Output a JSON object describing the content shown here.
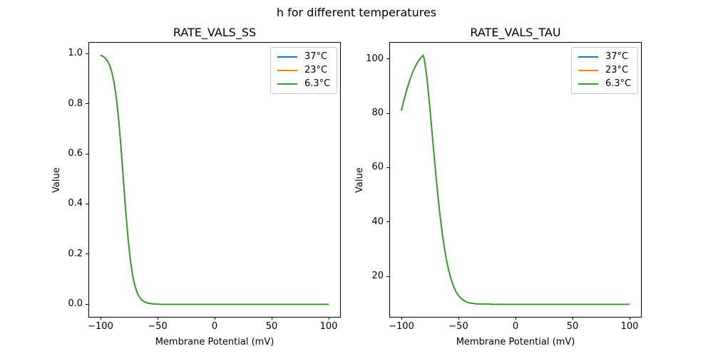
{
  "figure": {
    "suptitle": "h for different temperatures",
    "background": "#ffffff"
  },
  "chart_data": [
    {
      "type": "line",
      "title": "RATE_VALS_SS",
      "xlabel": "Membrane Potential (mV)",
      "ylabel": "Value",
      "xlim": [
        -110,
        110
      ],
      "ylim": [
        -0.05,
        1.043
      ],
      "xticks": [
        -100,
        -50,
        0,
        50,
        100
      ],
      "xtick_labels": [
        "−100",
        "−50",
        "0",
        "50",
        "100"
      ],
      "yticks": [
        0,
        0.2,
        0.4,
        0.6,
        0.8,
        1
      ],
      "ytick_labels": [
        "0.0",
        "0.2",
        "0.4",
        "0.6",
        "0.8",
        "1.0"
      ],
      "grid": false,
      "legend_position": "upper right",
      "note": "all three temperature curves overlap exactly; only the last-drawn (6.3°C, green) is visible",
      "x": [
        -100,
        -98,
        -96,
        -94,
        -92,
        -90,
        -88,
        -86,
        -84,
        -82,
        -81,
        -80,
        -78,
        -76,
        -74,
        -72,
        -70,
        -68,
        -66,
        -64,
        -62,
        -60,
        -58,
        -56,
        -54,
        -52,
        -50,
        -48,
        -46,
        -44,
        -42,
        -40,
        -35,
        -30,
        -25,
        -20,
        -10,
        0,
        20,
        40,
        60,
        80,
        100
      ],
      "series": [
        {
          "name": "37°C",
          "color": "#1f77b4",
          "values": [
            0.993,
            0.989,
            0.982,
            0.971,
            0.953,
            0.924,
            0.881,
            0.818,
            0.731,
            0.622,
            0.562,
            0.5,
            0.378,
            0.269,
            0.182,
            0.119,
            0.076,
            0.047,
            0.029,
            0.018,
            0.011,
            0.007,
            0.004,
            0.003,
            0.002,
            0.001,
            0.001,
            0,
            0,
            0,
            0,
            0,
            0,
            0,
            0,
            0,
            0,
            0,
            0,
            0,
            0,
            0,
            0
          ]
        },
        {
          "name": "23°C",
          "color": "#ff7f0e",
          "values": [
            0.993,
            0.989,
            0.982,
            0.971,
            0.953,
            0.924,
            0.881,
            0.818,
            0.731,
            0.622,
            0.562,
            0.5,
            0.378,
            0.269,
            0.182,
            0.119,
            0.076,
            0.047,
            0.029,
            0.018,
            0.011,
            0.007,
            0.004,
            0.003,
            0.002,
            0.001,
            0.001,
            0,
            0,
            0,
            0,
            0,
            0,
            0,
            0,
            0,
            0,
            0,
            0,
            0,
            0,
            0,
            0
          ]
        },
        {
          "name": "6.3°C",
          "color": "#2ca02c",
          "values": [
            0.993,
            0.989,
            0.982,
            0.971,
            0.953,
            0.924,
            0.881,
            0.818,
            0.731,
            0.622,
            0.562,
            0.5,
            0.378,
            0.269,
            0.182,
            0.119,
            0.076,
            0.047,
            0.029,
            0.018,
            0.011,
            0.007,
            0.004,
            0.003,
            0.002,
            0.001,
            0.001,
            0,
            0,
            0,
            0,
            0,
            0,
            0,
            0,
            0,
            0,
            0,
            0,
            0,
            0,
            0,
            0
          ]
        }
      ]
    },
    {
      "type": "line",
      "title": "RATE_VALS_TAU",
      "xlabel": "Membrane Potential (mV)",
      "ylabel": "Value",
      "xlim": [
        -110,
        110
      ],
      "ylim": [
        5.2,
        105.9
      ],
      "xticks": [
        -100,
        -50,
        0,
        50,
        100
      ],
      "xtick_labels": [
        "−100",
        "−50",
        "0",
        "50",
        "100"
      ],
      "yticks": [
        20,
        40,
        60,
        80,
        100
      ],
      "ytick_labels": [
        "20",
        "40",
        "60",
        "80",
        "100"
      ],
      "grid": false,
      "legend_position": "upper right",
      "note": "all three temperature curves overlap exactly; only the last-drawn (6.3°C, green) is visible",
      "x": [
        -100,
        -98,
        -96,
        -94,
        -92,
        -90,
        -88,
        -86,
        -84,
        -82,
        -81,
        -80,
        -78,
        -76,
        -74,
        -72,
        -70,
        -68,
        -66,
        -64,
        -62,
        -60,
        -58,
        -56,
        -54,
        -52,
        -50,
        -48,
        -46,
        -44,
        -42,
        -40,
        -35,
        -30,
        -25,
        -20,
        -10,
        0,
        20,
        40,
        60,
        80,
        100
      ],
      "series": [
        {
          "name": "37°C",
          "color": "#1f77b4",
          "values": [
            81,
            84.5,
            87.6,
            90.4,
            93,
            95.2,
            97,
            98.6,
            99.9,
            100.8,
            101.3,
            100,
            94.3,
            86.2,
            77,
            67.5,
            58.2,
            49.6,
            41.9,
            35.3,
            29.7,
            25,
            21.3,
            18.4,
            16.1,
            14.3,
            13,
            12.1,
            11.4,
            10.9,
            10.5,
            10.3,
            10,
            9.9,
            9.9,
            9.8,
            9.8,
            9.8,
            9.8,
            9.8,
            9.8,
            9.8,
            9.8
          ]
        },
        {
          "name": "23°C",
          "color": "#ff7f0e",
          "values": [
            81,
            84.5,
            87.6,
            90.4,
            93,
            95.2,
            97,
            98.6,
            99.9,
            100.8,
            101.3,
            100,
            94.3,
            86.2,
            77,
            67.5,
            58.2,
            49.6,
            41.9,
            35.3,
            29.7,
            25,
            21.3,
            18.4,
            16.1,
            14.3,
            13,
            12.1,
            11.4,
            10.9,
            10.5,
            10.3,
            10,
            9.9,
            9.9,
            9.8,
            9.8,
            9.8,
            9.8,
            9.8,
            9.8,
            9.8,
            9.8
          ]
        },
        {
          "name": "6.3°C",
          "color": "#2ca02c",
          "values": [
            81,
            84.5,
            87.6,
            90.4,
            93,
            95.2,
            97,
            98.6,
            99.9,
            100.8,
            101.3,
            100,
            94.3,
            86.2,
            77,
            67.5,
            58.2,
            49.6,
            41.9,
            35.3,
            29.7,
            25,
            21.3,
            18.4,
            16.1,
            14.3,
            13,
            12.1,
            11.4,
            10.9,
            10.5,
            10.3,
            10,
            9.9,
            9.9,
            9.8,
            9.8,
            9.8,
            9.8,
            9.8,
            9.8,
            9.8,
            9.8
          ]
        }
      ]
    }
  ]
}
